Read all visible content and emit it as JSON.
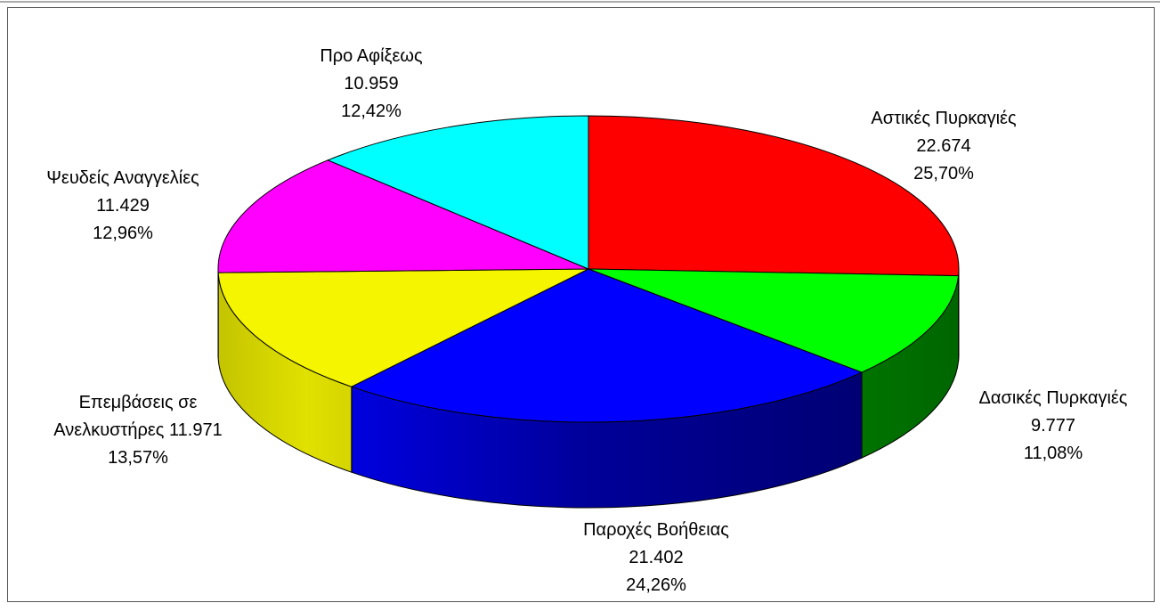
{
  "chart_data": {
    "type": "pie3d",
    "categories": [
      "Αστικές Πυρκαγιές",
      "Δασικές Πυρκαγιές",
      "Παροχές Βοήθειας",
      "Επεμβάσεις σε Ανελκυστήρες",
      "Ψευδείς Αναγγελίες",
      "Προ Αφίξεως"
    ],
    "values": [
      22674,
      9777,
      21402,
      11971,
      11429,
      10959
    ],
    "value_labels": [
      "22.674",
      "9.777",
      "21.402",
      "11.971",
      "11.429",
      "10.959"
    ],
    "percent_labels": [
      "25,70%",
      "11,08%",
      "24,26%",
      "13,57%",
      "12,96%",
      "12,42%"
    ],
    "colors": [
      "#ff0000",
      "#00ff00",
      "#0000ff",
      "#f5f500",
      "#ff00ff",
      "#00ffff"
    ]
  }
}
